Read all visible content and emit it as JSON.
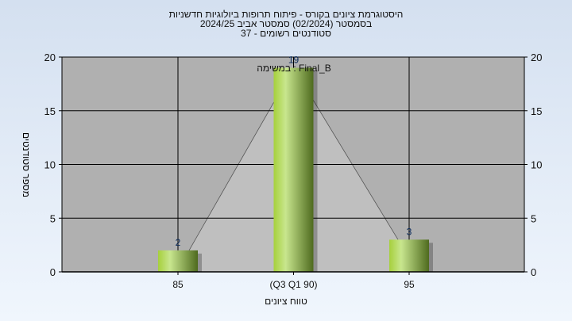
{
  "chart_data": {
    "type": "bar",
    "title_lines": [
      "היסטוגרמת ציונים בקורס - פיתוח תרופות ביולוגיות חדשניות",
      "בסמסטר  (02/2024)  סמסטר אביב 2024/25",
      "סטודנטים רשומים - 37"
    ],
    "annotation": "במשימה : Final_B",
    "categories": [
      "85",
      "(Q3 Q1 90)",
      "95"
    ],
    "values": [
      2,
      19,
      3
    ],
    "xlabel": "טווח ציונים",
    "ylabel": "מספר סטודנטים",
    "ylim": [
      0,
      20
    ],
    "yticks": [
      0,
      5,
      10,
      15,
      20
    ],
    "grid": true,
    "colors": {
      "bar": "#9cc83a",
      "plot_bg": "#b0b0b0",
      "area": "#bfbfbf"
    }
  }
}
